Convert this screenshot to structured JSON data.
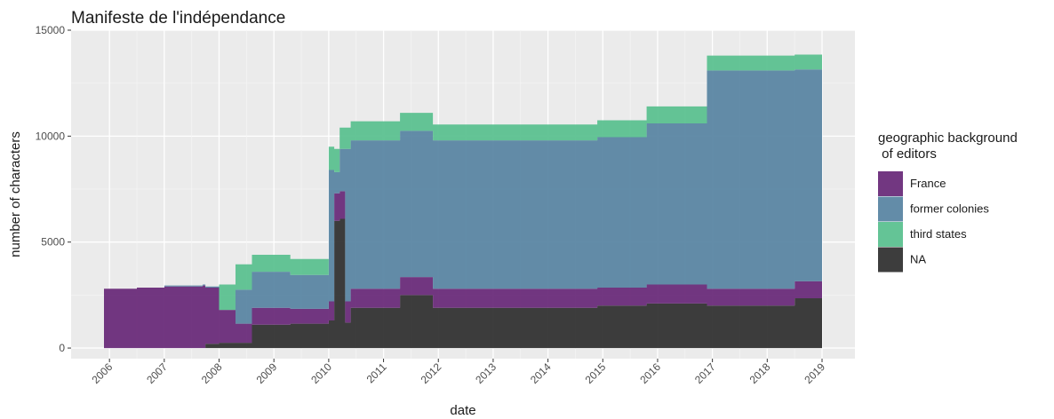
{
  "chart_data": {
    "type": "area",
    "title": "Manifeste de l'indépendance",
    "xlabel": "date",
    "ylabel": "number of characters",
    "xlim": [
      2005.3,
      2019.6
    ],
    "ylim": [
      -500,
      15000
    ],
    "x_ticks": [
      "2006",
      "2007",
      "2008",
      "2009",
      "2010",
      "2011",
      "2012",
      "2013",
      "2014",
      "2015",
      "2016",
      "2017",
      "2018",
      "2019"
    ],
    "y_ticks": [
      {
        "value": 0,
        "label": "0"
      },
      {
        "value": 5000,
        "label": "5000"
      },
      {
        "value": 10000,
        "label": "10000"
      },
      {
        "value": 15000,
        "label": "15000"
      }
    ],
    "grid": true,
    "legend": {
      "title": "geographic background\n of editors",
      "position": "right"
    },
    "stacked": true,
    "step": true,
    "x": [
      2005.9,
      2006.5,
      2007.0,
      2007.7,
      2007.75,
      2008.0,
      2008.3,
      2008.6,
      2008.7,
      2008.85,
      2009.0,
      2009.3,
      2009.6,
      2010.0,
      2010.1,
      2010.2,
      2010.3,
      2010.4,
      2010.6,
      2011.3,
      2011.9,
      2014.2,
      2014.9,
      2015.8,
      2016.9,
      2018.5,
      2019.0
    ],
    "series": [
      {
        "name": "NA",
        "color": "#333333",
        "values": [
          0,
          0,
          0,
          0,
          200,
          250,
          250,
          1100,
          1100,
          1100,
          1100,
          1150,
          1150,
          1300,
          6000,
          6100,
          1200,
          1900,
          1900,
          2500,
          1900,
          1900,
          2000,
          2100,
          2000,
          2350,
          2350
        ]
      },
      {
        "name": "France",
        "color": "#6a2c7a",
        "values": [
          2800,
          2850,
          2900,
          2950,
          2650,
          1550,
          900,
          800,
          800,
          800,
          800,
          700,
          700,
          900,
          1300,
          1300,
          1000,
          900,
          900,
          850,
          900,
          900,
          850,
          900,
          800,
          800,
          800
        ]
      },
      {
        "name": "former colonies",
        "color": "#5b86a3",
        "values": [
          0,
          0,
          50,
          50,
          50,
          0,
          1600,
          1700,
          1700,
          1700,
          1700,
          1600,
          1600,
          6200,
          1000,
          2000,
          7200,
          7000,
          7000,
          6900,
          7000,
          7000,
          7100,
          7600,
          10300,
          10000,
          10000
        ]
      },
      {
        "name": "third states",
        "color": "#5cc190",
        "values": [
          0,
          0,
          0,
          0,
          0,
          1200,
          1200,
          800,
          800,
          800,
          800,
          750,
          750,
          1100,
          1100,
          1000,
          1000,
          900,
          900,
          850,
          750,
          750,
          800,
          800,
          700,
          700,
          700
        ]
      }
    ],
    "legend_order": [
      "France",
      "former colonies",
      "third states",
      "NA"
    ]
  }
}
